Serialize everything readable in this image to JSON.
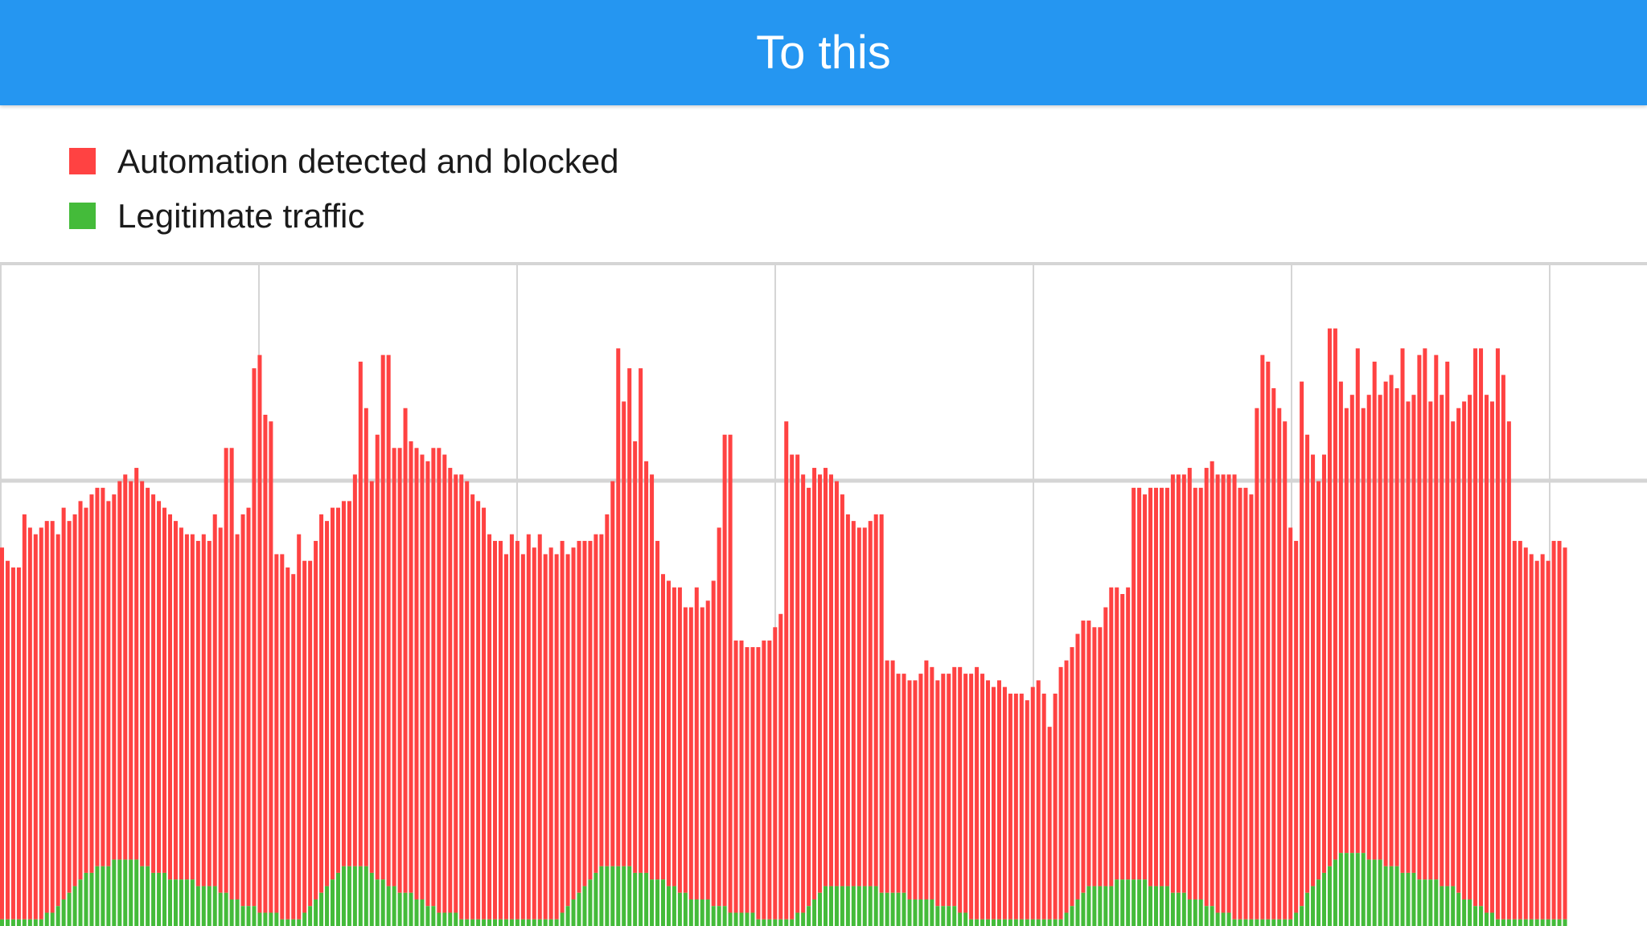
{
  "header": {
    "title": "To this"
  },
  "colors": {
    "header_bg": "#2596f1",
    "blocked": "#ff4242",
    "legitimate": "#44bb3a",
    "gap": "#ffd9d9",
    "grid": "#d5d5d5"
  },
  "chart_data": {
    "type": "bar",
    "stacked": true,
    "grid": true,
    "legend": "top-left",
    "ylim": [
      0,
      100
    ],
    "series": [
      {
        "name": "Automation detected and blocked",
        "color": "#ff4242",
        "total_values": [
          57,
          55,
          54,
          54,
          62,
          60,
          59,
          60,
          61,
          61,
          59,
          63,
          61,
          62,
          64,
          63,
          65,
          66,
          66,
          64,
          65,
          67,
          68,
          67,
          69,
          67,
          66,
          65,
          64,
          63,
          62,
          61,
          60,
          59,
          59,
          58,
          59,
          58,
          62,
          60,
          72,
          72,
          59,
          62,
          63,
          84,
          86,
          77,
          76,
          56,
          56,
          54,
          53,
          59,
          55,
          55,
          58,
          62,
          61,
          63,
          63,
          64,
          64,
          68,
          85,
          78,
          67,
          74,
          86,
          86,
          72,
          72,
          78,
          73,
          72,
          71,
          70,
          72,
          72,
          71,
          69,
          68,
          68,
          67,
          65,
          64,
          63,
          59,
          58,
          58,
          56,
          59,
          58,
          56,
          59,
          57,
          59,
          56,
          57,
          56,
          58,
          56,
          57,
          58,
          58,
          58,
          59,
          59,
          62,
          67,
          87,
          79,
          84,
          73,
          84,
          70,
          68,
          58,
          53,
          52,
          51,
          51,
          48,
          48,
          51,
          48,
          49,
          52,
          60,
          74,
          74,
          43,
          43,
          42,
          42,
          42,
          43,
          43,
          45,
          47,
          76,
          71,
          71,
          68,
          66,
          69,
          68,
          69,
          68,
          67,
          65,
          62,
          61,
          60,
          60,
          61,
          62,
          62,
          40,
          40,
          38,
          38,
          37,
          37,
          38,
          40,
          39,
          37,
          38,
          38,
          39,
          39,
          38,
          38,
          39,
          38,
          37,
          36,
          37,
          36,
          35,
          35,
          35,
          34,
          36,
          37,
          35,
          30,
          35,
          39,
          40,
          42,
          44,
          46,
          46,
          45,
          45,
          48,
          51,
          51,
          50,
          51,
          66,
          66,
          65,
          66,
          66,
          66,
          66,
          68,
          68,
          68,
          69,
          66,
          66,
          69,
          70,
          68,
          68,
          68,
          68,
          66,
          66,
          65,
          78,
          86,
          85,
          81,
          78,
          76,
          60,
          58,
          82,
          74,
          71,
          67,
          71,
          90,
          90,
          82,
          78,
          80,
          87,
          78,
          80,
          85,
          80,
          82,
          83,
          81,
          87,
          79,
          80,
          86,
          87,
          79,
          86,
          80,
          85,
          76,
          78,
          79,
          80,
          87,
          87,
          80,
          79,
          87,
          83,
          76,
          58,
          58,
          57,
          56,
          55,
          56,
          55,
          58,
          58,
          57,
          58,
          58,
          59,
          62,
          63,
          64,
          65,
          63,
          64,
          66,
          68,
          67,
          66,
          65
        ]
      },
      {
        "name": "Legitimate traffic",
        "color": "#44bb3a",
        "values": [
          1,
          1,
          1,
          1,
          1,
          1,
          1,
          1,
          2,
          2,
          3,
          4,
          5,
          6,
          7,
          8,
          8,
          9,
          9,
          9,
          10,
          10,
          10,
          10,
          10,
          9,
          9,
          8,
          8,
          8,
          7,
          7,
          7,
          7,
          7,
          6,
          6,
          6,
          6,
          5,
          5,
          4,
          4,
          3,
          3,
          3,
          2,
          2,
          2,
          2,
          1,
          1,
          1,
          1,
          2,
          3,
          4,
          5,
          6,
          7,
          8,
          9,
          9,
          9,
          9,
          9,
          8,
          7,
          7,
          6,
          6,
          5,
          5,
          5,
          4,
          4,
          3,
          3,
          2,
          2,
          2,
          2,
          1,
          1,
          1,
          1,
          1,
          1,
          1,
          1,
          1,
          1,
          1,
          1,
          1,
          1,
          1,
          1,
          1,
          1,
          2,
          3,
          4,
          5,
          6,
          7,
          8,
          9,
          9,
          9,
          9,
          9,
          9,
          8,
          8,
          8,
          7,
          7,
          7,
          6,
          6,
          5,
          5,
          4,
          4,
          4,
          4,
          3,
          3,
          3,
          2,
          2,
          2,
          2,
          2,
          1,
          1,
          1,
          1,
          1,
          1,
          1,
          2,
          2,
          3,
          4,
          5,
          6,
          6,
          6,
          6,
          6,
          6,
          6,
          6,
          6,
          6,
          5,
          5,
          5,
          5,
          5,
          4,
          4,
          4,
          4,
          4,
          3,
          3,
          3,
          3,
          2,
          2,
          1,
          1,
          1,
          1,
          1,
          1,
          1,
          1,
          1,
          1,
          1,
          1,
          1,
          1,
          1,
          1,
          1,
          2,
          3,
          4,
          5,
          6,
          6,
          6,
          6,
          6,
          7,
          7,
          7,
          7,
          7,
          7,
          6,
          6,
          6,
          6,
          5,
          5,
          5,
          4,
          4,
          4,
          3,
          3,
          2,
          2,
          2,
          1,
          1,
          1,
          1,
          1,
          1,
          1,
          1,
          1,
          1,
          1,
          2,
          3,
          5,
          6,
          7,
          8,
          9,
          10,
          11,
          11,
          11,
          11,
          11,
          10,
          10,
          10,
          9,
          9,
          9,
          8,
          8,
          8,
          7,
          7,
          7,
          7,
          6,
          6,
          6,
          5,
          4,
          4,
          3,
          3,
          2,
          2,
          1,
          1,
          1,
          1,
          1,
          1,
          1,
          1,
          1,
          1,
          1,
          1,
          1
        ]
      }
    ]
  }
}
